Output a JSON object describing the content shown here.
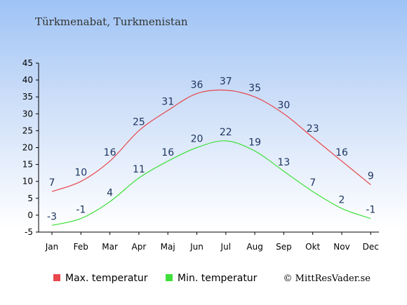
{
  "chart_data": {
    "type": "line",
    "title": "Türkmenabat, Turkmenistan",
    "categories": [
      "Jan",
      "Feb",
      "Mar",
      "Apr",
      "Maj",
      "Jun",
      "Jul",
      "Aug",
      "Sep",
      "Okt",
      "Nov",
      "Dec"
    ],
    "y_ticks": [
      "45",
      "40",
      "35",
      "30",
      "25",
      "20",
      "15",
      "10",
      "5",
      "0",
      "-5"
    ],
    "ylim": [
      -5,
      45
    ],
    "series": [
      {
        "name": "Max. temperatur",
        "color": "#e8474c",
        "values": [
          7,
          10,
          16,
          25,
          31,
          36,
          37,
          35,
          30,
          23,
          16,
          9
        ],
        "labels": [
          "7",
          "10",
          "16",
          "25",
          "31",
          "36",
          "37",
          "35",
          "30",
          "23",
          "16",
          "9"
        ]
      },
      {
        "name": "Min. temperatur",
        "color": "#3fe03a",
        "values": [
          -3,
          -1,
          4,
          11,
          16,
          20,
          22,
          19,
          13,
          7,
          2,
          -1
        ],
        "labels": [
          "-3",
          "-1",
          "4",
          "11",
          "16",
          "20",
          "22",
          "19",
          "13",
          "7",
          "2",
          "-1"
        ]
      }
    ],
    "grid": false,
    "legend": "bottom-left"
  },
  "credit": "© MittResVader.se"
}
